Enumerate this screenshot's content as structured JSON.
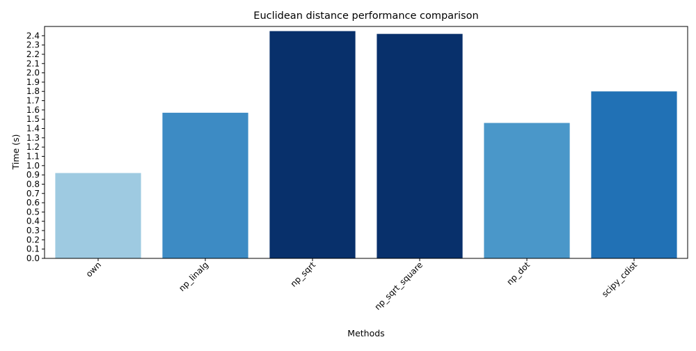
{
  "chart_data": {
    "type": "bar",
    "title": "Euclidean distance performance comparison",
    "xlabel": "Methods",
    "ylabel": "Time (s)",
    "ylim": [
      0,
      2.5
    ],
    "yticks": [
      0.0,
      0.1,
      0.2,
      0.3,
      0.4,
      0.5,
      0.6,
      0.7,
      0.8,
      0.9,
      1.0,
      1.1,
      1.2,
      1.3,
      1.4,
      1.5,
      1.6,
      1.7,
      1.8,
      1.9,
      2.0,
      2.1,
      2.2,
      2.3,
      2.4
    ],
    "grid": false,
    "legend": "none",
    "categories": [
      "own",
      "np_linalg",
      "np_sqrt",
      "np_sqrt_square",
      "np_dot",
      "scipy_cdist"
    ],
    "values": [
      0.92,
      1.57,
      2.45,
      2.42,
      1.46,
      1.8
    ],
    "colors": [
      "#9ecae1",
      "#3d8bc4",
      "#08306b",
      "#08306b",
      "#4a97c9",
      "#2171b5"
    ]
  }
}
